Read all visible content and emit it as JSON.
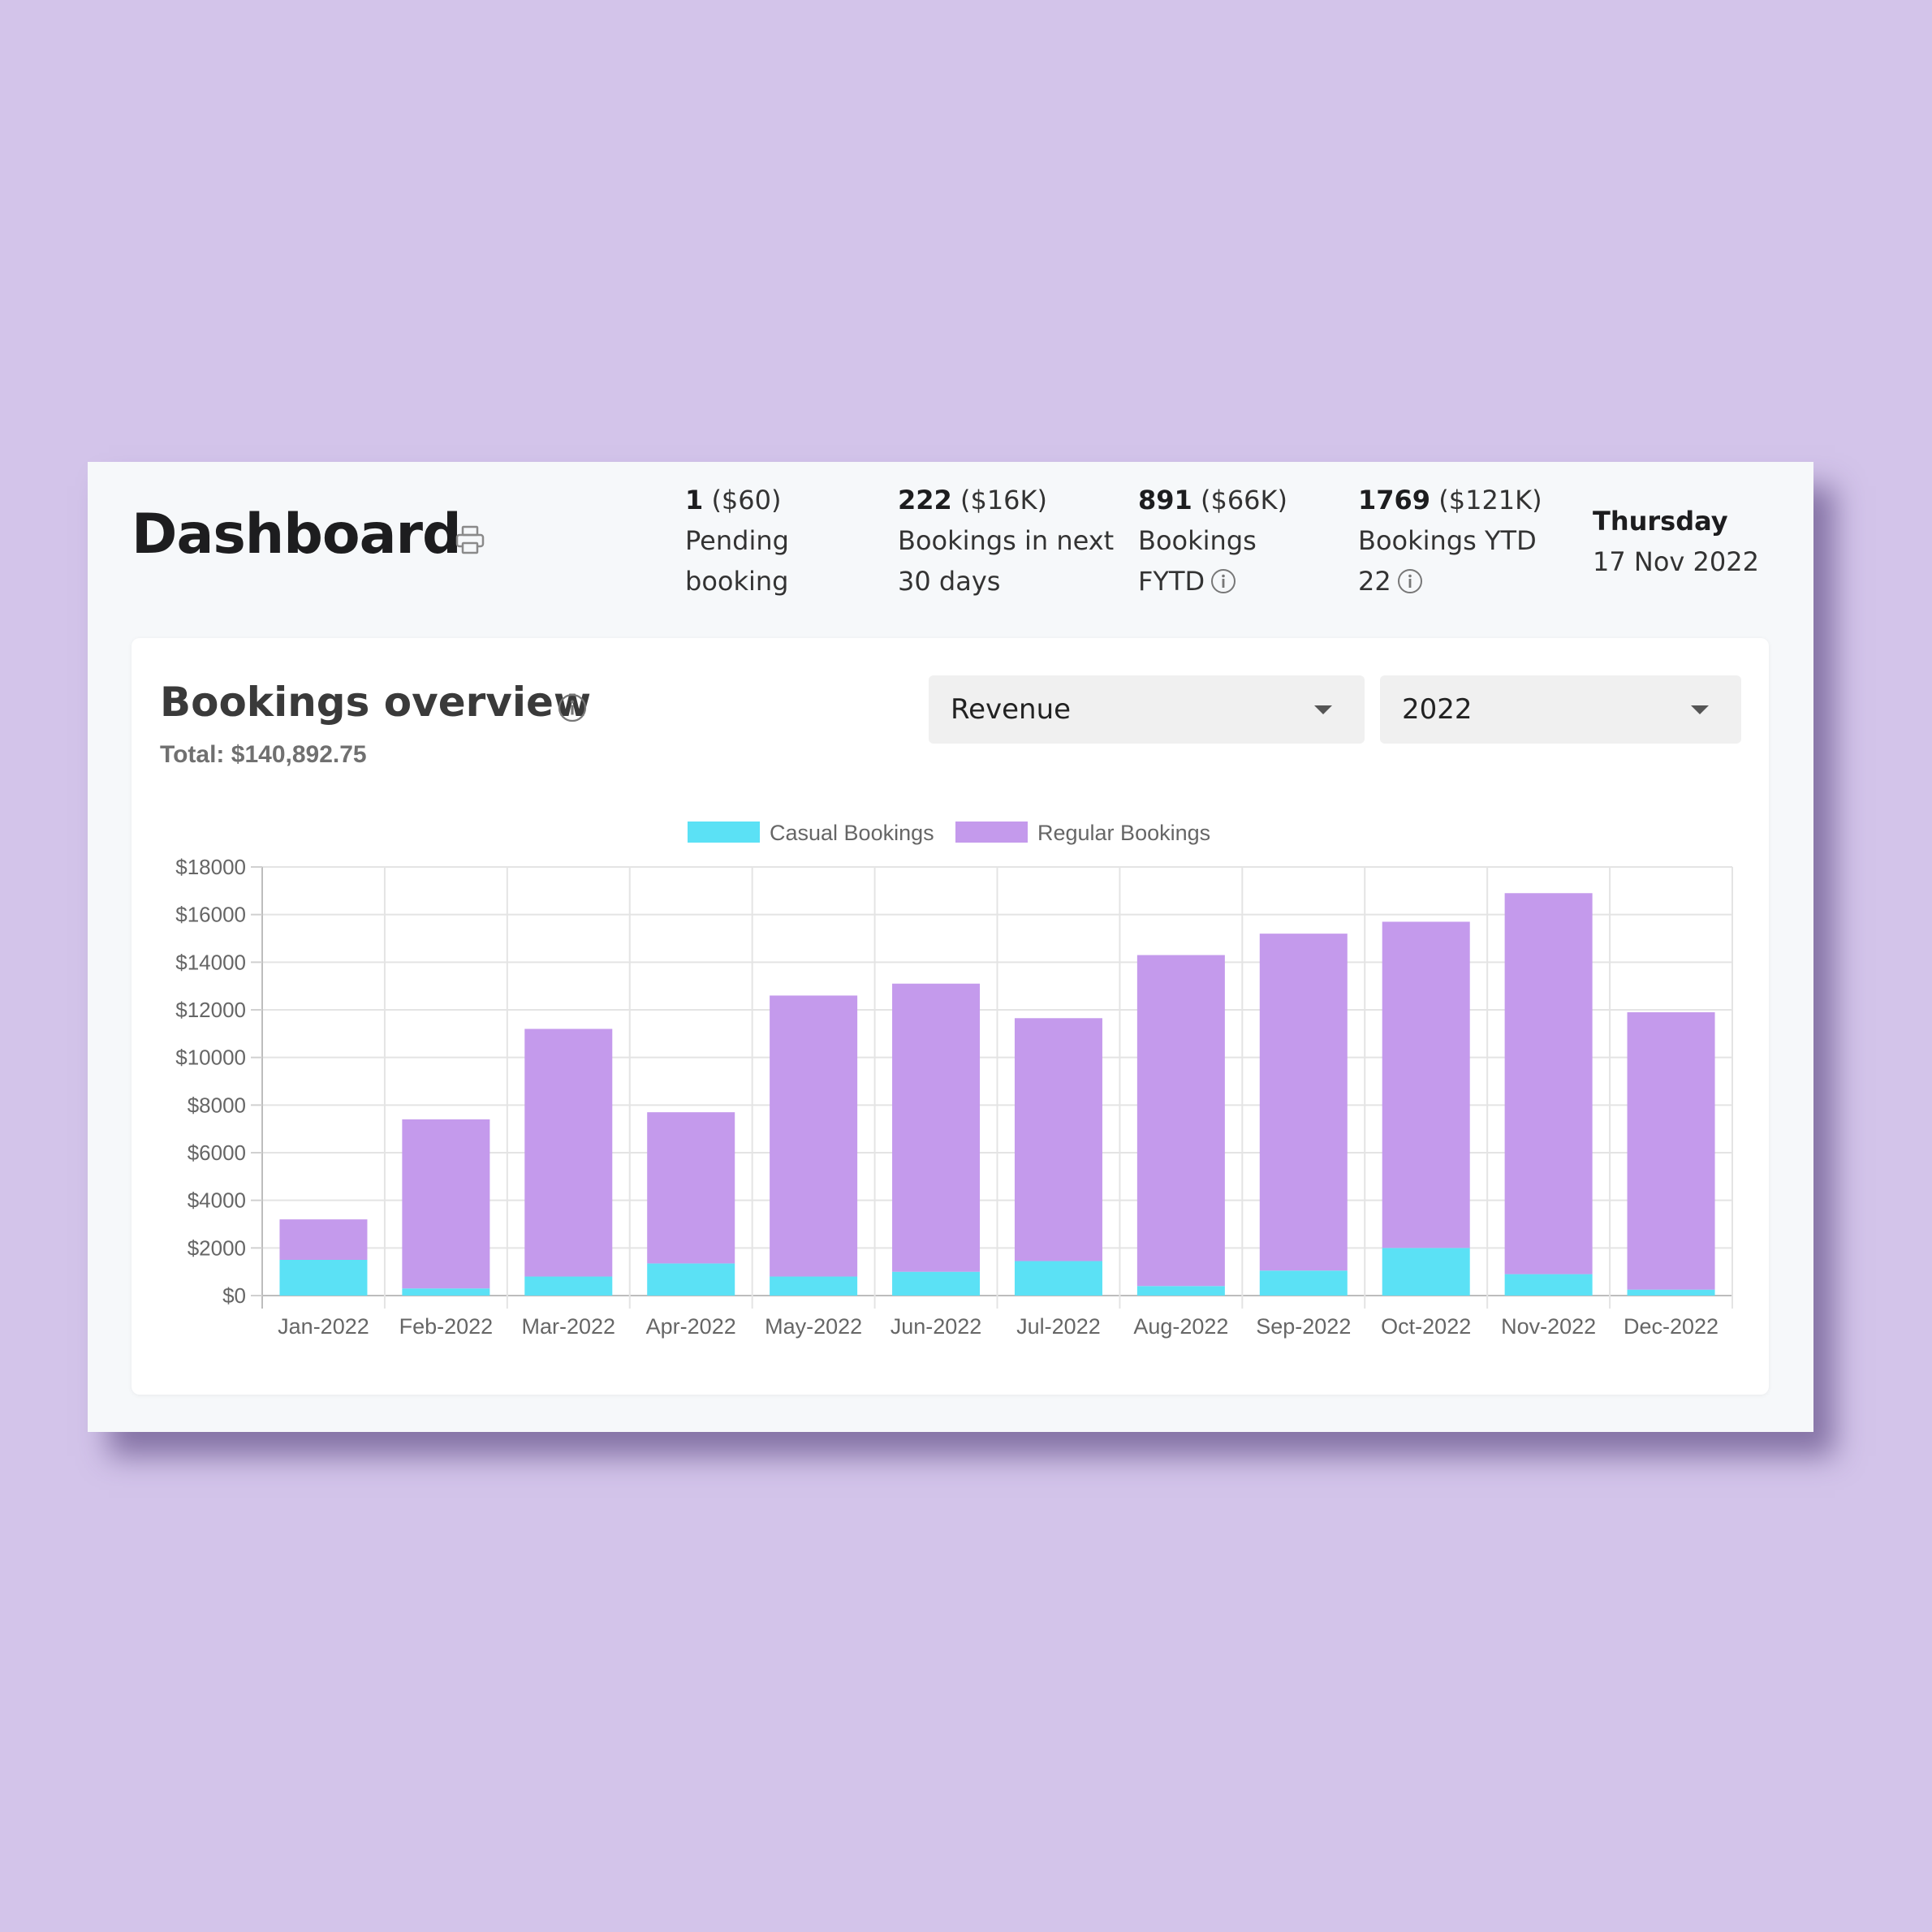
{
  "header": {
    "title": "Dashboard",
    "print_icon": "printer-icon",
    "stats": [
      {
        "value": "1",
        "amount": " ($60)",
        "label_line1": "Pending",
        "label_line2": "booking",
        "info": false
      },
      {
        "value": "222",
        "amount": " ($16K)",
        "label_line1": "Bookings in next",
        "label_line2": "30 days",
        "info": false
      },
      {
        "value": "891",
        "amount": " ($66K)",
        "label_line1": "Bookings",
        "label_line2": "FYTD",
        "info": true
      },
      {
        "value": "1769",
        "amount": " ($121K)",
        "label_line1": "Bookings YTD",
        "label_line2": "22",
        "info": true
      }
    ],
    "date": {
      "day": "Thursday",
      "date": "17 Nov 2022"
    }
  },
  "overview": {
    "title": "Bookings overview",
    "total": "Total: $140,892.75",
    "metric_select": "Revenue",
    "year_select": "2022"
  },
  "colors": {
    "casual": "#5be1f5",
    "regular": "#c49aec",
    "background": "#d3c4ea"
  },
  "chart_data": {
    "type": "bar",
    "stacked": true,
    "categories": [
      "Jan-2022",
      "Feb-2022",
      "Mar-2022",
      "Apr-2022",
      "May-2022",
      "Jun-2022",
      "Jul-2022",
      "Aug-2022",
      "Sep-2022",
      "Oct-2022",
      "Nov-2022",
      "Dec-2022"
    ],
    "series": [
      {
        "name": "Casual Bookings",
        "values": [
          1500,
          300,
          800,
          1350,
          800,
          1000,
          1450,
          400,
          1050,
          2000,
          900,
          250
        ]
      },
      {
        "name": "Regular Bookings",
        "values": [
          1700,
          7100,
          10400,
          6350,
          11800,
          12100,
          10200,
          13900,
          14150,
          13700,
          16000,
          11650
        ]
      }
    ],
    "ylim": [
      0,
      18000
    ],
    "yticks": [
      "$0",
      "$2000",
      "$4000",
      "$6000",
      "$8000",
      "$10000",
      "$12000",
      "$14000",
      "$16000",
      "$18000"
    ],
    "grid": true,
    "legend": "top-center"
  }
}
